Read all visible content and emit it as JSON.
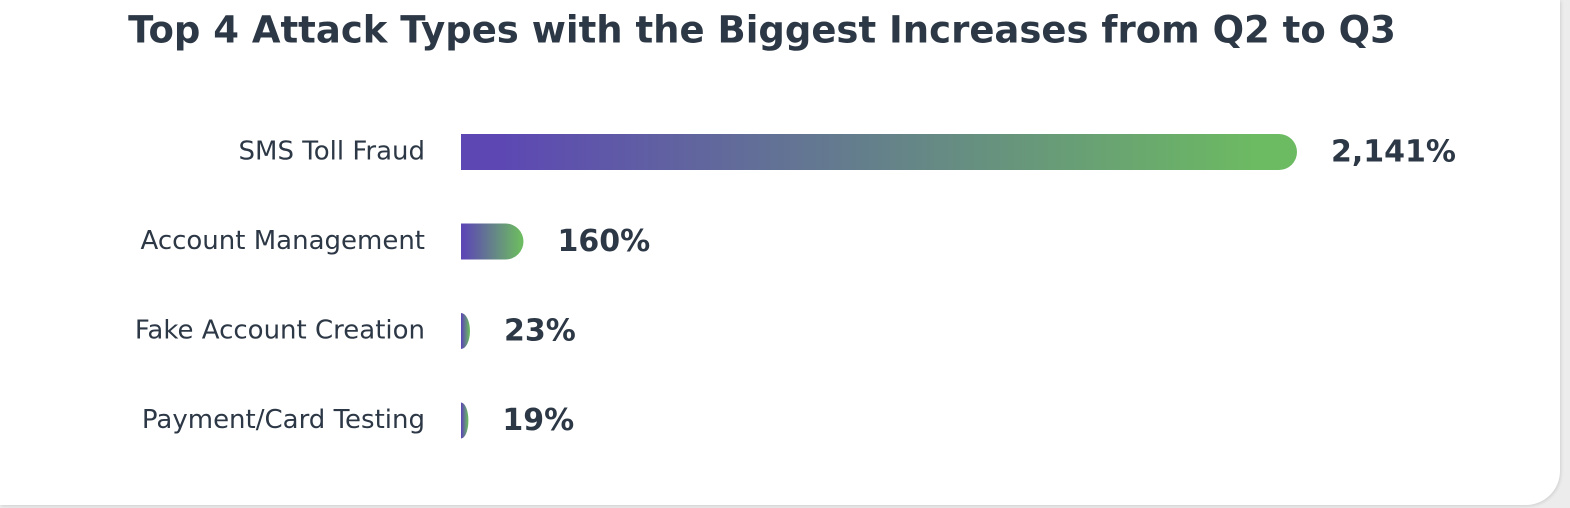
{
  "chart_data": {
    "type": "bar",
    "orientation": "horizontal",
    "title": "Top 4 Attack Types with the Biggest Increases from Q2 to Q3",
    "categories": [
      "SMS Toll Fraud",
      "Account Management",
      "Fake Account Creation",
      "Payment/Card Testing"
    ],
    "values": [
      2141,
      160,
      23,
      19
    ],
    "value_labels": [
      "2,141%",
      "160%",
      "23%",
      "19%"
    ],
    "gradient": [
      "#5d48b3",
      "#6cba62"
    ]
  }
}
